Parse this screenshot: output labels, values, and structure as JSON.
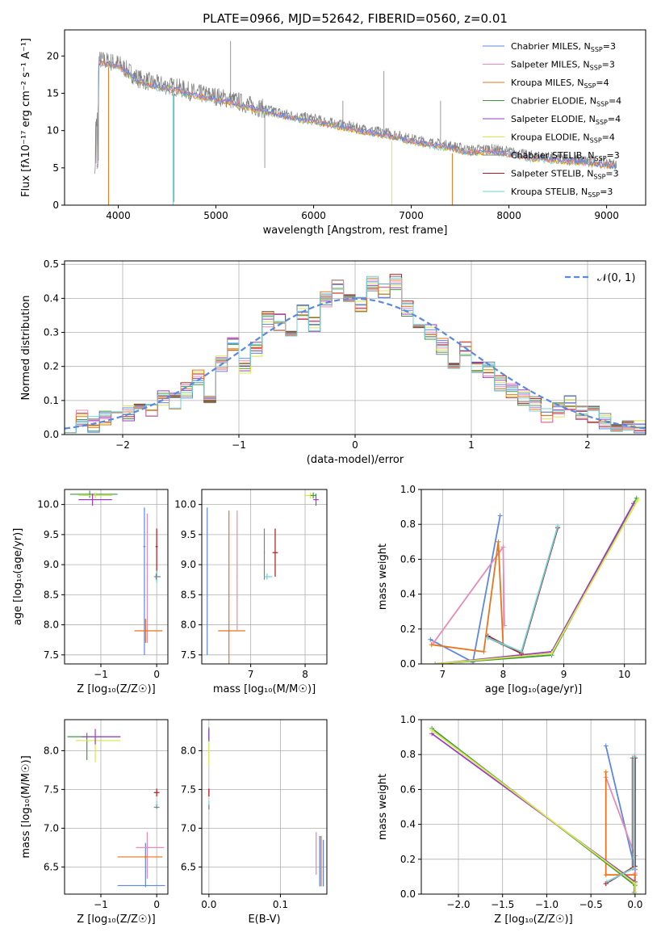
{
  "figure": {
    "title": "PLATE=0966, MJD=52642, FIBERID=0560, z=0.01"
  },
  "colors": {
    "chabrier_miles": "#5b88e0",
    "salpeter_miles": "#e78ab7",
    "kroupa_miles": "#e6751e",
    "chabrier_elodie": "#3f9a3f",
    "salpeter_elodie": "#9b3dbf",
    "kroupa_elodie": "#d8e84a",
    "chabrier_stelib": "#808080",
    "salpeter_stelib": "#b01818",
    "kroupa_stelib": "#72cfd8",
    "gaussian": "#5b88e0"
  },
  "chart_data": [
    {
      "panel": "spectrum",
      "type": "line",
      "title": "PLATE=0966, MJD=52642, FIBERID=0560, z=0.01",
      "xlabel": "wavelength [Angstrom, rest frame]",
      "ylabel": "Flux [fλ10⁻¹⁷ erg cm⁻² s⁻¹ A⁻¹]",
      "xlim": [
        3450,
        9400
      ],
      "ylim": [
        0,
        23.5
      ],
      "xticks": [
        "4000",
        "5000",
        "6000",
        "7000",
        "8000",
        "9000"
      ],
      "yticks": [
        "0",
        "5",
        "10",
        "15",
        "20"
      ],
      "grid": false,
      "legend_position": "top-right",
      "data_envelope_x": [
        3800,
        4000,
        4200,
        4400,
        4600,
        4800,
        5000,
        5200,
        5400,
        5600,
        5800,
        6000,
        6200,
        6400,
        6600,
        6800,
        7000,
        7200,
        7400,
        7600,
        7800,
        8000,
        8200,
        8400,
        8600,
        8800,
        9000,
        9100
      ],
      "data_envelope_y": [
        19.5,
        19.0,
        17.0,
        16.2,
        15.8,
        15.0,
        14.6,
        14.0,
        13.2,
        12.6,
        12.0,
        11.6,
        11.0,
        10.5,
        10.0,
        9.6,
        8.9,
        8.4,
        8.0,
        7.4,
        7.6,
        7.2,
        6.7,
        6.5,
        6.2,
        6.0,
        5.7,
        5.5
      ],
      "series": [
        {
          "name": "Chabrier MILES, N",
          "sub": "SSP",
          "suffix": "=3",
          "color_key": "chabrier_miles"
        },
        {
          "name": "Salpeter MILES, N",
          "sub": "SSP",
          "suffix": "=3",
          "color_key": "salpeter_miles"
        },
        {
          "name": "Kroupa MILES, N",
          "sub": "SSP",
          "suffix": "=4",
          "color_key": "kroupa_miles"
        },
        {
          "name": "Chabrier ELODIE, N",
          "sub": "SSP",
          "suffix": "=4",
          "color_key": "chabrier_elodie"
        },
        {
          "name": "Salpeter ELODIE, N",
          "sub": "SSP",
          "suffix": "=4",
          "color_key": "salpeter_elodie"
        },
        {
          "name": "Kroupa ELODIE, N",
          "sub": "SSP",
          "suffix": "=4",
          "color_key": "kroupa_elodie"
        },
        {
          "name": "Chabrier STELIB, N",
          "sub": "SSP",
          "suffix": "=3",
          "color_key": "chabrier_stelib"
        },
        {
          "name": "Salpeter STELIB, N",
          "sub": "SSP",
          "suffix": "=3",
          "color_key": "salpeter_stelib"
        },
        {
          "name": "Kroupa STELIB, N",
          "sub": "SSP",
          "suffix": "=3",
          "color_key": "kroupa_stelib"
        }
      ]
    },
    {
      "panel": "residuals",
      "type": "line",
      "xlabel": "(data-model)/error",
      "ylabel": "Normed distribution",
      "xlim": [
        -2.5,
        2.5
      ],
      "ylim": [
        0,
        0.51
      ],
      "xticks": [
        "−2",
        "−1",
        "0",
        "1",
        "2"
      ],
      "yticks": [
        "0.0",
        "0.1",
        "0.2",
        "0.3",
        "0.4",
        "0.5"
      ],
      "grid": true,
      "legend_position": "top-right",
      "legend_label": "𝒩(0, 1)",
      "bin_edges": [
        -2.5,
        -2.4,
        -2.3,
        -2.2,
        -2.1,
        -2.0,
        -1.9,
        -1.8,
        -1.7,
        -1.6,
        -1.5,
        -1.4,
        -1.3,
        -1.2,
        -1.1,
        -1.0,
        -0.9,
        -0.8,
        -0.7,
        -0.6,
        -0.5,
        -0.4,
        -0.3,
        -0.2,
        -0.1,
        0.0,
        0.1,
        0.2,
        0.3,
        0.4,
        0.5,
        0.6,
        0.7,
        0.8,
        0.9,
        1.0,
        1.1,
        1.2,
        1.3,
        1.4,
        1.5,
        1.6,
        1.7,
        1.8,
        1.9,
        2.0,
        2.1,
        2.2,
        2.3,
        2.4,
        2.5
      ],
      "histogram_base": [
        0.02,
        0.05,
        0.03,
        0.05,
        0.06,
        0.06,
        0.08,
        0.07,
        0.11,
        0.1,
        0.13,
        0.17,
        0.09,
        0.21,
        0.27,
        0.2,
        0.25,
        0.34,
        0.33,
        0.3,
        0.36,
        0.32,
        0.4,
        0.43,
        0.4,
        0.38,
        0.44,
        0.42,
        0.45,
        0.37,
        0.33,
        0.3,
        0.26,
        0.2,
        0.25,
        0.2,
        0.19,
        0.15,
        0.13,
        0.11,
        0.09,
        0.06,
        0.07,
        0.09,
        0.06,
        0.06,
        0.04,
        0.03,
        0.02,
        0.02
      ],
      "gaussian": {
        "mean": 0,
        "sigma": 1
      }
    },
    {
      "panel": "age-vs-Z",
      "type": "scatter",
      "xlabel": "Z [log₁₀(Z/Z☉)]",
      "ylabel": "age  [log₁₀(age/yr)]",
      "xlim": [
        -1.65,
        0.2
      ],
      "ylim": [
        7.35,
        10.25
      ],
      "xticks": [
        "−1",
        "0"
      ],
      "yticks": [
        "7.5",
        "8.0",
        "8.5",
        "9.0",
        "9.5",
        "10.0"
      ],
      "grid": true
    },
    {
      "panel": "age-vs-mass",
      "type": "scatter",
      "xlabel": "mass [log₁₀(M/M☉)]",
      "xlim": [
        6.1,
        8.4
      ],
      "ylim": [
        7.35,
        10.25
      ],
      "xticks": [
        "7",
        "8"
      ],
      "yticks": [
        "7.5",
        "8.0",
        "8.5",
        "9.0",
        "9.5",
        "10.0"
      ],
      "grid": true
    },
    {
      "panel": "massweight-vs-age",
      "type": "line",
      "xlabel": "age  [log₁₀(age/yr)]",
      "ylabel": "mass weight",
      "xlim": [
        6.65,
        10.35
      ],
      "ylim": [
        0,
        1.0
      ],
      "xticks": [
        "7",
        "8",
        "9",
        "10"
      ],
      "yticks": [
        "0.0",
        "0.2",
        "0.4",
        "0.6",
        "0.8",
        "1.0"
      ],
      "grid": true,
      "series": [
        {
          "color_key": "chabrier_miles",
          "x": [
            6.8,
            7.5,
            7.95
          ],
          "y": [
            0.14,
            0.01,
            0.85
          ]
        },
        {
          "color_key": "salpeter_miles",
          "x": [
            6.85,
            8.0,
            8.02
          ],
          "y": [
            0.12,
            0.67,
            0.22
          ]
        },
        {
          "color_key": "kroupa_miles",
          "x": [
            6.82,
            7.68,
            7.92,
            8.0
          ],
          "y": [
            0.11,
            0.07,
            0.7,
            0.11
          ]
        },
        {
          "color_key": "chabrier_elodie",
          "x": [
            6.88,
            8.8,
            10.2
          ],
          "y": [
            0.0,
            0.05,
            0.95
          ]
        },
        {
          "color_key": "salpeter_elodie",
          "x": [
            6.88,
            8.8,
            10.15
          ],
          "y": [
            0.0,
            0.07,
            0.92
          ]
        },
        {
          "color_key": "kroupa_elodie",
          "x": [
            6.88,
            8.8,
            10.22
          ],
          "y": [
            0.0,
            0.06,
            0.94
          ]
        },
        {
          "color_key": "chabrier_stelib",
          "x": [
            7.75,
            8.3,
            8.9
          ],
          "y": [
            0.15,
            0.06,
            0.78
          ]
        },
        {
          "color_key": "salpeter_stelib",
          "x": [
            7.75,
            8.3,
            8.9
          ],
          "y": [
            0.16,
            0.06,
            0.78
          ]
        },
        {
          "color_key": "kroupa_stelib",
          "x": [
            7.75,
            8.3,
            8.9
          ],
          "y": [
            0.15,
            0.07,
            0.79
          ]
        }
      ]
    },
    {
      "panel": "mass-vs-Z",
      "type": "scatter",
      "xlabel": "Z [log₁₀(Z/Z☉)]",
      "ylabel": "mass [log₁₀(M/M☉)]",
      "xlim": [
        -1.65,
        0.2
      ],
      "ylim": [
        6.15,
        8.4
      ],
      "xticks": [
        "−1",
        "0"
      ],
      "yticks": [
        "6.5",
        "7.0",
        "7.5",
        "8.0"
      ],
      "grid": true
    },
    {
      "panel": "mass-vs-EBV",
      "type": "scatter",
      "xlabel": "E(B-V)",
      "xlim": [
        -0.01,
        0.165
      ],
      "ylim": [
        6.15,
        8.4
      ],
      "xticks": [
        "0.0",
        "0.1"
      ],
      "yticks": [
        "6.5",
        "7.0",
        "7.5",
        "8.0"
      ],
      "grid": true
    },
    {
      "panel": "massweight-vs-Z",
      "type": "line",
      "xlabel": "Z [log₁₀(Z/Z☉)]",
      "ylabel": "mass weight",
      "xlim": [
        -2.42,
        0.12
      ],
      "ylim": [
        0,
        1.0
      ],
      "xticks": [
        "−2.0",
        "−1.5",
        "−1.0",
        "−0.5",
        "0.0"
      ],
      "yticks": [
        "0.0",
        "0.2",
        "0.4",
        "0.6",
        "0.8",
        "1.0"
      ],
      "grid": true,
      "series": [
        {
          "color_key": "chabrier_miles",
          "x": [
            -0.33,
            0.0,
            -0.01
          ],
          "y": [
            0.85,
            0.14,
            0.01
          ]
        },
        {
          "color_key": "salpeter_miles",
          "x": [
            -0.33,
            0.0,
            0.0
          ],
          "y": [
            0.67,
            0.22,
            0.12
          ]
        },
        {
          "color_key": "kroupa_miles",
          "x": [
            -0.33,
            -0.33,
            0.0,
            0.0
          ],
          "y": [
            0.7,
            0.11,
            0.11,
            0.07
          ]
        },
        {
          "color_key": "chabrier_elodie",
          "x": [
            -2.3,
            0.0,
            0.0
          ],
          "y": [
            0.95,
            0.05,
            0.0
          ]
        },
        {
          "color_key": "salpeter_elodie",
          "x": [
            -2.3,
            0.0,
            0.0
          ],
          "y": [
            0.92,
            0.07,
            0.0
          ]
        },
        {
          "color_key": "kroupa_elodie",
          "x": [
            -2.3,
            0.0,
            0.0
          ],
          "y": [
            0.94,
            0.06,
            0.0
          ]
        },
        {
          "color_key": "chabrier_stelib",
          "x": [
            -0.03,
            -0.03,
            -0.33
          ],
          "y": [
            0.78,
            0.15,
            0.06
          ]
        },
        {
          "color_key": "salpeter_stelib",
          "x": [
            0.0,
            0.0,
            -0.33
          ],
          "y": [
            0.78,
            0.16,
            0.06
          ]
        },
        {
          "color_key": "kroupa_stelib",
          "x": [
            -0.01,
            -0.01,
            -0.32
          ],
          "y": [
            0.79,
            0.15,
            0.07
          ]
        }
      ]
    }
  ]
}
